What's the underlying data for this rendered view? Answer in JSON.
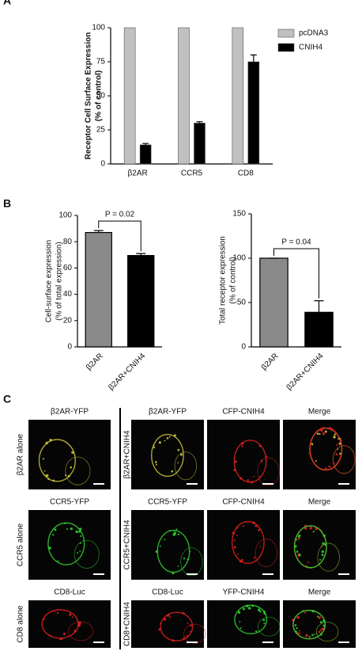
{
  "panel_labels": [
    "A",
    "B",
    "C"
  ],
  "chart_data": [
    {
      "type": "bar",
      "ylabel": [
        "Receptor Cell Surface Expression",
        "(% of control)"
      ],
      "categories": [
        "β2AR",
        "CCR5",
        "CD8"
      ],
      "series": [
        {
          "name": "pcDNA3",
          "color": "#c0c0c0",
          "values": [
            100,
            100,
            100
          ]
        },
        {
          "name": "CNIH4",
          "color": "#000000",
          "values": [
            14,
            30,
            75
          ],
          "errors": [
            1,
            1,
            5
          ]
        }
      ],
      "ylim": [
        0,
        100
      ],
      "yticks": [
        0,
        25,
        50,
        75,
        100
      ],
      "grid": false,
      "legend": "upper right"
    },
    {
      "type": "bar",
      "ylabel": [
        "Cell-surface expression",
        "(% of total expression)"
      ],
      "categories": [
        "β2AR",
        "β2AR+CNIH4"
      ],
      "values": [
        87,
        69.5
      ],
      "errors": [
        1.5,
        1.5
      ],
      "colors": [
        "#8a8a8a",
        "#000000"
      ],
      "annotation": "P = 0.02",
      "ylim": [
        0,
        100
      ],
      "yticks": [
        0,
        20,
        40,
        60,
        80,
        100
      ],
      "grid": false
    },
    {
      "type": "bar",
      "ylabel": [
        "Total receptor expression",
        "(% of control)"
      ],
      "categories": [
        "β2AR",
        "β2AR+CNIH4"
      ],
      "values": [
        100,
        39
      ],
      "errors": [
        0,
        13
      ],
      "colors": [
        "#8a8a8a",
        "#000000"
      ],
      "annotation": "P = 0.04",
      "ylim": [
        0,
        150
      ],
      "yticks": [
        0,
        50,
        100,
        150
      ],
      "grid": false
    }
  ],
  "panel_c": {
    "left": [
      {
        "header": "β2AR-YFP",
        "label": "β2AR alone"
      },
      {
        "header": "CCR5-YFP",
        "label": "CCR5 alone"
      },
      {
        "header": "CD8-Luc",
        "label": "CD8 alone"
      }
    ],
    "right": [
      {
        "label": "β2AR+CNIH4",
        "headers": [
          "β2AR-YFP",
          "CFP-CNIH4",
          "Merge"
        ]
      },
      {
        "label": "CCR5+CNIH4",
        "headers": [
          "CCR5-YFP",
          "CFP-CNIH4",
          "Merge"
        ]
      },
      {
        "label": "CD8+CNIH4",
        "headers": [
          "CD8-Luc",
          "YFP-CNIH4",
          "Merge"
        ]
      }
    ]
  }
}
